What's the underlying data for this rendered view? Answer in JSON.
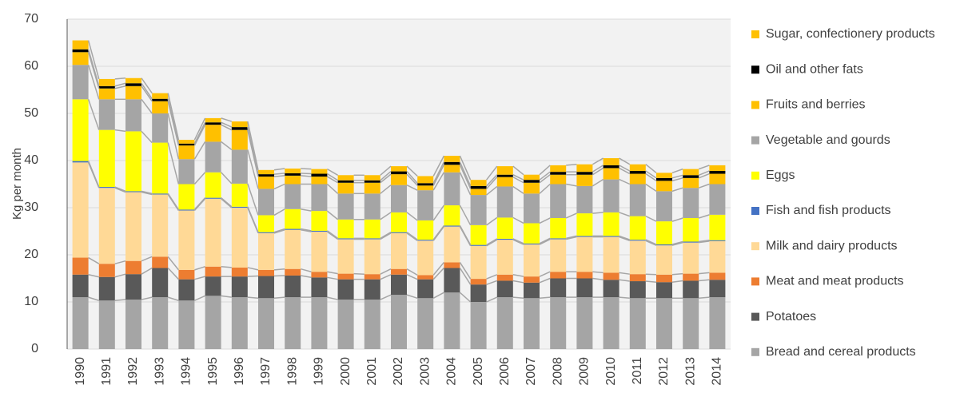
{
  "chart_data": {
    "type": "stacked-bar",
    "y_label": "Kg per month",
    "categories": [
      "1990",
      "1991",
      "1992",
      "1993",
      "1994",
      "1995",
      "1996",
      "1997",
      "1998",
      "1999",
      "2000",
      "2001",
      "2002",
      "2003",
      "2004",
      "2005",
      "2006",
      "2007",
      "2008",
      "2009",
      "2010",
      "2011",
      "2012",
      "2013",
      "2014"
    ],
    "series": [
      {
        "name": "Bread and cereal products",
        "color": "#a5a5a5",
        "values": [
          11,
          10.3,
          10.5,
          11,
          10.3,
          11.3,
          11,
          10.8,
          11,
          11,
          10.5,
          10.5,
          11.5,
          10.8,
          12,
          10,
          11,
          10.8,
          11,
          11,
          11,
          10.8,
          10.8,
          10.8,
          11
        ]
      },
      {
        "name": "Potatoes",
        "color": "#595959",
        "values": [
          4.8,
          5.0,
          5.4,
          6.2,
          4.5,
          4.1,
          4.4,
          4.7,
          4.6,
          4.2,
          4.3,
          4.3,
          4.3,
          4.0,
          5.2,
          3.7,
          3.5,
          3.3,
          4.0,
          4.0,
          3.7,
          3.6,
          3.4,
          3.7,
          3.7
        ]
      },
      {
        "name": "Meat and meat products",
        "color": "#ed7d31",
        "values": [
          3.6,
          2.8,
          2.8,
          2.4,
          2.0,
          2.1,
          1.9,
          1.3,
          1.4,
          1.2,
          1.2,
          1.1,
          1.2,
          0.9,
          1.2,
          1.2,
          1.3,
          1.3,
          1.4,
          1.4,
          1.5,
          1.5,
          1.6,
          1.5,
          1.5
        ]
      },
      {
        "name": "Milk and dairy products",
        "color": "#ffd996",
        "values": [
          20.2,
          16.1,
          14.6,
          13.2,
          12.6,
          14.4,
          12.7,
          7.8,
          8.3,
          8.5,
          7.3,
          7.4,
          7.6,
          7.3,
          7.6,
          7.0,
          7.4,
          6.8,
          6.9,
          7.4,
          7.6,
          7.1,
          6.2,
          6.6,
          6.7
        ]
      },
      {
        "name": "Fish and fish products",
        "color": "#4472c4",
        "values": [
          0.3,
          0.2,
          0.2,
          0.2,
          0.2,
          0.2,
          0.2,
          0.2,
          0.2,
          0.2,
          0.2,
          0.2,
          0.2,
          0.2,
          0.2,
          0.2,
          0.2,
          0.2,
          0.2,
          0.2,
          0.2,
          0.2,
          0.2,
          0.2,
          0.2
        ]
      },
      {
        "name": "Eggs",
        "color": "#ffff00",
        "values": [
          13.1,
          12.1,
          12.7,
          10.8,
          5.4,
          5.4,
          4.9,
          3.6,
          4.2,
          4.2,
          4.0,
          4.0,
          4.2,
          4.1,
          4.3,
          4.2,
          4.5,
          4.3,
          4.3,
          4.8,
          5.0,
          5.0,
          4.9,
          5.0,
          5.4
        ]
      },
      {
        "name": "Vegetable and gourds",
        "color": "#a5a5a5",
        "values": [
          7.3,
          6.5,
          6.8,
          6.2,
          5.3,
          6.5,
          7.2,
          5.6,
          5.3,
          5.7,
          5.5,
          5.5,
          5.8,
          6.4,
          7.0,
          6.4,
          6.6,
          6.3,
          7.2,
          5.8,
          7.0,
          6.8,
          6.4,
          6.4,
          6.5
        ]
      },
      {
        "name": "Fruits and berries",
        "color": "#ffc000",
        "values": [
          2.7,
          2.3,
          2.8,
          2.6,
          2.9,
          3.6,
          4.2,
          2.6,
          1.8,
          1.6,
          2.3,
          2.3,
          2.3,
          1.0,
          1.6,
          1.3,
          2.0,
          2.3,
          2.0,
          2.4,
          2.4,
          2.2,
          2.2,
          2.1,
          2.2
        ]
      },
      {
        "name": "Oil and other fats",
        "color": "#000000",
        "values": [
          0.6,
          0.5,
          0.6,
          0.5,
          0.4,
          0.5,
          0.6,
          0.5,
          0.5,
          0.6,
          0.5,
          0.5,
          0.6,
          0.5,
          0.6,
          0.6,
          0.5,
          0.6,
          0.6,
          0.6,
          0.6,
          0.6,
          0.6,
          0.6,
          0.6
        ]
      },
      {
        "name": "Sugar, confectionery products",
        "color": "#ffc000",
        "values": [
          1.9,
          1.5,
          1.1,
          1.2,
          0.8,
          0.9,
          1.2,
          0.9,
          1.0,
          1.0,
          1.1,
          1.1,
          1.1,
          1.5,
          1.3,
          1.3,
          1.8,
          1.1,
          1.4,
          1.6,
          1.5,
          1.4,
          1.1,
          1.3,
          1.2
        ]
      }
    ],
    "ylim": [
      0,
      70
    ],
    "yticks": [
      0,
      10,
      20,
      30,
      40,
      50,
      60,
      70
    ],
    "grid": true,
    "legend": "right"
  }
}
